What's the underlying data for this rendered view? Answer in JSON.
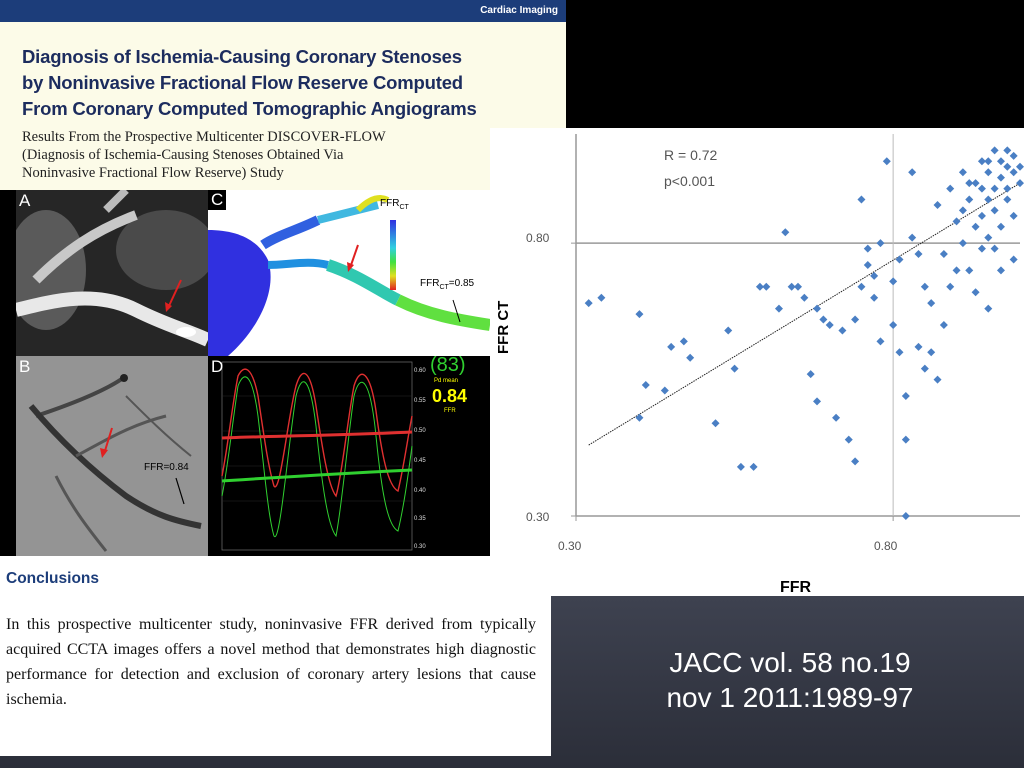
{
  "paper": {
    "section_label": "Cardiac Imaging",
    "title_lines": [
      "Diagnosis of Ischemia-Causing Coronary Stenoses",
      "by Noninvasive Fractional Flow Reserve Computed",
      "From Coronary Computed Tomographic Angiograms"
    ],
    "subtitle_lines": [
      "Results From the Prospective Multicenter DISCOVER-FLOW",
      "(Diagnosis of Ischemia-Causing Stenoses Obtained Via",
      "Noninvasive Fractional Flow Reserve) Study"
    ]
  },
  "figure": {
    "panel_a_letter": "A",
    "panel_b_letter": "B",
    "panel_c_letter": "C",
    "panel_d_letter": "D",
    "panel_b_label": "FFR=0.84",
    "panel_c_label_top": "FFR",
    "panel_c_label_top_sub": "CT",
    "panel_c_label_right": "FFR",
    "panel_c_label_right_sub": "CT",
    "panel_c_label_right_value": "=0.85",
    "panel_d_index": "(83)",
    "panel_d_pd_label": "Pd mean",
    "panel_d_value": "0.84",
    "panel_d_unit": "FFR",
    "panel_d_ticks": [
      "0.60",
      "0.55",
      "0.50",
      "0.45",
      "0.40",
      "0.35",
      "0.30"
    ],
    "colors": {
      "red_trace": "#e03030",
      "green_trace": "#30d030",
      "value_yellow": "#ffff00"
    }
  },
  "chart_data": {
    "type": "scatter",
    "annotation_r": "R = 0.72",
    "annotation_p": "p<0.001",
    "xlabel": "FFR",
    "ylabel": "FFR CT",
    "xlim": [
      0.3,
      1.0
    ],
    "ylim": [
      0.3,
      1.0
    ],
    "x_tick_labels": [
      "0.30",
      "0.80"
    ],
    "y_tick_labels": [
      "0.80",
      "0.30"
    ],
    "reference_lines": {
      "x": 0.8,
      "y": 0.8
    },
    "trendline": {
      "x": [
        0.32,
        1.0
      ],
      "y": [
        0.43,
        0.91
      ]
    },
    "marker_color": "#4a7fc4",
    "points": [
      [
        0.32,
        0.69
      ],
      [
        0.34,
        0.7
      ],
      [
        0.4,
        0.67
      ],
      [
        0.4,
        0.48
      ],
      [
        0.41,
        0.54
      ],
      [
        0.44,
        0.53
      ],
      [
        0.45,
        0.61
      ],
      [
        0.47,
        0.62
      ],
      [
        0.48,
        0.59
      ],
      [
        0.52,
        0.47
      ],
      [
        0.54,
        0.64
      ],
      [
        0.55,
        0.57
      ],
      [
        0.56,
        0.39
      ],
      [
        0.58,
        0.39
      ],
      [
        0.59,
        0.72
      ],
      [
        0.6,
        0.72
      ],
      [
        0.62,
        0.68
      ],
      [
        0.63,
        0.82
      ],
      [
        0.64,
        0.72
      ],
      [
        0.65,
        0.72
      ],
      [
        0.66,
        0.7
      ],
      [
        0.67,
        0.56
      ],
      [
        0.68,
        0.51
      ],
      [
        0.68,
        0.68
      ],
      [
        0.69,
        0.66
      ],
      [
        0.7,
        0.65
      ],
      [
        0.71,
        0.48
      ],
      [
        0.72,
        0.64
      ],
      [
        0.73,
        0.44
      ],
      [
        0.74,
        0.66
      ],
      [
        0.74,
        0.4
      ],
      [
        0.75,
        0.72
      ],
      [
        0.75,
        0.88
      ],
      [
        0.76,
        0.79
      ],
      [
        0.76,
        0.76
      ],
      [
        0.77,
        0.74
      ],
      [
        0.77,
        0.7
      ],
      [
        0.78,
        0.8
      ],
      [
        0.78,
        0.62
      ],
      [
        0.79,
        0.95
      ],
      [
        0.8,
        0.73
      ],
      [
        0.8,
        0.65
      ],
      [
        0.81,
        0.77
      ],
      [
        0.81,
        0.6
      ],
      [
        0.82,
        0.52
      ],
      [
        0.82,
        0.44
      ],
      [
        0.82,
        0.3
      ],
      [
        0.83,
        0.93
      ],
      [
        0.83,
        0.81
      ],
      [
        0.84,
        0.78
      ],
      [
        0.84,
        0.61
      ],
      [
        0.85,
        0.57
      ],
      [
        0.85,
        0.72
      ],
      [
        0.86,
        0.69
      ],
      [
        0.86,
        0.6
      ],
      [
        0.87,
        0.55
      ],
      [
        0.87,
        0.87
      ],
      [
        0.88,
        0.78
      ],
      [
        0.88,
        0.65
      ],
      [
        0.89,
        0.9
      ],
      [
        0.89,
        0.72
      ],
      [
        0.9,
        0.84
      ],
      [
        0.9,
        0.75
      ],
      [
        0.91,
        0.86
      ],
      [
        0.91,
        0.8
      ],
      [
        0.92,
        0.88
      ],
      [
        0.92,
        0.75
      ],
      [
        0.93,
        0.91
      ],
      [
        0.93,
        0.83
      ],
      [
        0.94,
        0.95
      ],
      [
        0.94,
        0.85
      ],
      [
        0.94,
        0.79
      ],
      [
        0.95,
        0.93
      ],
      [
        0.95,
        0.88
      ],
      [
        0.95,
        0.81
      ],
      [
        0.96,
        0.9
      ],
      [
        0.96,
        0.86
      ],
      [
        0.96,
        0.79
      ],
      [
        0.97,
        0.95
      ],
      [
        0.97,
        0.92
      ],
      [
        0.97,
        0.83
      ],
      [
        0.98,
        0.94
      ],
      [
        0.98,
        0.9
      ],
      [
        0.98,
        0.88
      ],
      [
        0.99,
        0.96
      ],
      [
        0.99,
        0.93
      ],
      [
        0.99,
        0.85
      ],
      [
        1.0,
        0.94
      ],
      [
        1.0,
        0.91
      ],
      [
        0.93,
        0.71
      ],
      [
        0.95,
        0.68
      ],
      [
        0.97,
        0.75
      ],
      [
        0.99,
        0.77
      ],
      [
        0.92,
        0.91
      ],
      [
        0.96,
        0.97
      ],
      [
        0.98,
        0.97
      ],
      [
        0.95,
        0.95
      ],
      [
        0.91,
        0.93
      ],
      [
        0.94,
        0.9
      ]
    ]
  },
  "conclusions": {
    "heading": "Conclusions",
    "text": "In this prospective multicenter study, noninvasive FFR derived from typically acquired CCTA images offers a novel method that demonstrates high diagnostic performance for detection and exclusion of coronary artery lesions that cause ischemia."
  },
  "citation": {
    "line1": "JACC vol. 58 no.19",
    "line2": "nov 1 2011:1989-97"
  }
}
